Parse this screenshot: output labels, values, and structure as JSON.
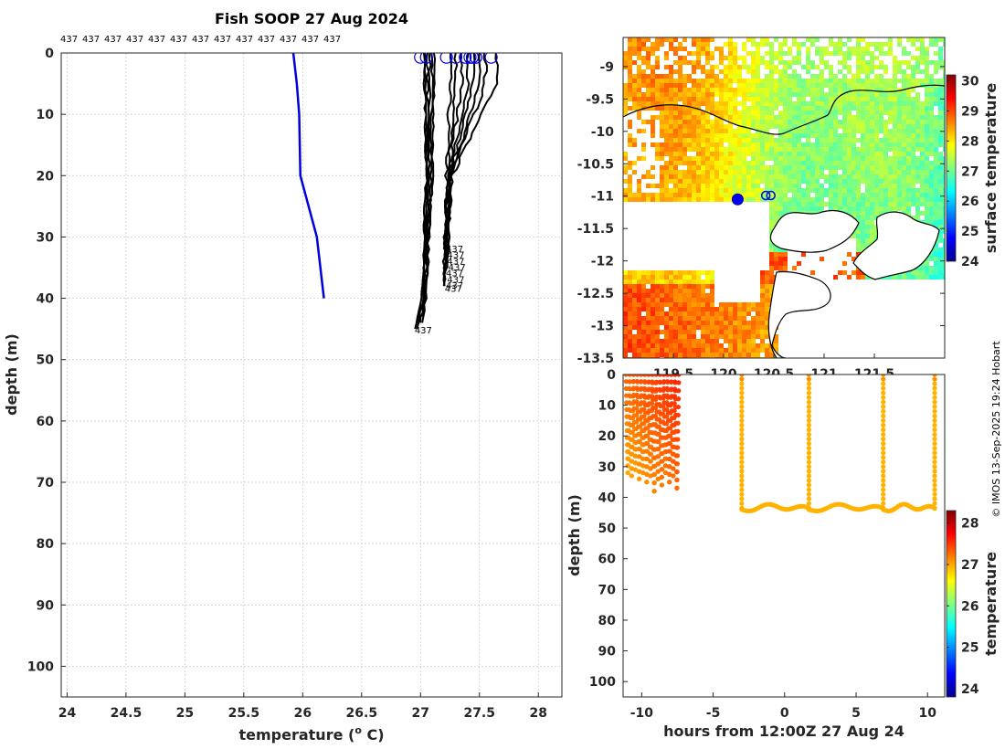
{
  "chart_data": [
    {
      "type": "line",
      "id": "profile",
      "title": "Fish SOOP 27 Aug 2024",
      "xlabel": "temperature (",
      "xlabel_sup": "o",
      "xlabel_unit": " C)",
      "ylabel": "depth (m)",
      "xlim": [
        23.95,
        28.2
      ],
      "ylim": [
        0,
        105
      ],
      "xticks": [
        24,
        24.5,
        25,
        25.5,
        26,
        26.5,
        27,
        27.5,
        28
      ],
      "xtick_labels": [
        "24",
        "24.5",
        "25",
        "25.5",
        "26",
        "26.5",
        "27",
        "27.5",
        "28"
      ],
      "yticks": [
        0,
        10,
        20,
        30,
        40,
        50,
        60,
        70,
        80,
        90,
        100
      ],
      "ytick_labels": [
        "0",
        "10",
        "20",
        "30",
        "40",
        "50",
        "60",
        "70",
        "80",
        "90",
        "100"
      ],
      "top_labels": [
        "437",
        "437",
        "437",
        "437",
        "437",
        "437",
        "437",
        "437",
        "437",
        "437",
        "437",
        "437",
        "437"
      ],
      "series": [
        {
          "name": "reference",
          "color": "#0000dd",
          "points": [
            [
              25.92,
              0
            ],
            [
              25.95,
              5
            ],
            [
              25.97,
              10
            ],
            [
              25.98,
              20
            ],
            [
              26.05,
              25
            ],
            [
              26.12,
              30
            ],
            [
              26.18,
              40
            ]
          ]
        },
        {
          "name": "deep",
          "color": "#000000",
          "tail_label": "437",
          "profiles": [
            {
              "t0": 27.04,
              "t20": 27.05,
              "t40": 27.03,
              "bottom_t": 26.97,
              "bottom_z": 45
            },
            {
              "t0": 27.08,
              "t20": 27.07,
              "t40": 27.04,
              "bottom_t": 26.99,
              "bottom_z": 44.5
            },
            {
              "t0": 27.1,
              "t20": 27.09,
              "t40": 27.05,
              "bottom_t": 27.01,
              "bottom_z": 44
            },
            {
              "t0": 27.06,
              "t20": 27.06,
              "t40": 27.02,
              "bottom_t": 26.96,
              "bottom_z": 44.6
            },
            {
              "t0": 27.12,
              "t20": 27.1,
              "t40": 27.04,
              "bottom_t": 27.0,
              "bottom_z": 43.8
            },
            {
              "t0": 27.03,
              "t20": 27.05,
              "t40": 27.01,
              "bottom_t": 26.95,
              "bottom_z": 45
            }
          ]
        },
        {
          "name": "shallow",
          "color": "#000000",
          "tail_label": "437",
          "profiles": [
            {
              "t0": 27.25,
              "t20": 27.22,
              "bottom_t": 27.2,
              "bottom_z": 32
            },
            {
              "t0": 27.35,
              "t20": 27.24,
              "bottom_t": 27.21,
              "bottom_z": 33
            },
            {
              "t0": 27.45,
              "t20": 27.25,
              "bottom_t": 27.21,
              "bottom_z": 34
            },
            {
              "t0": 27.55,
              "t20": 27.26,
              "bottom_t": 27.22,
              "bottom_z": 35
            },
            {
              "t0": 27.65,
              "t20": 27.27,
              "bottom_t": 27.2,
              "bottom_z": 36
            },
            {
              "t0": 27.4,
              "t20": 27.24,
              "bottom_t": 27.21,
              "bottom_z": 37
            },
            {
              "t0": 27.5,
              "t20": 27.26,
              "bottom_t": 27.2,
              "bottom_z": 38
            },
            {
              "t0": 27.3,
              "t20": 27.23,
              "bottom_t": 27.19,
              "bottom_z": 38.5
            }
          ]
        }
      ],
      "surface_markers": [
        27.0,
        27.05,
        27.22,
        27.3,
        27.38,
        27.42,
        27.44,
        27.47,
        27.6
      ]
    },
    {
      "type": "heatmap",
      "id": "map",
      "xticks": [
        119.5,
        120,
        120.5,
        121,
        121.5
      ],
      "xtick_labels": [
        "119.5",
        "120",
        "120.5",
        "121",
        "121.5"
      ],
      "xlim": [
        119.0,
        122.2
      ],
      "ylim": [
        -13.5,
        -8.55
      ],
      "yticks": [
        -9,
        -9.5,
        -10,
        -10.5,
        -11,
        -11.5,
        -12,
        -12.5,
        -13,
        -13.5
      ],
      "ytick_labels": [
        "-9",
        "-9.5",
        "-10",
        "-10.5",
        "-11",
        "-11.5",
        "-12",
        "-12.5",
        "-13",
        "-13.5"
      ],
      "colorbar_label": "surface temperature",
      "colorbar_range": [
        24,
        30.2
      ],
      "colorbar_ticks": [
        24,
        25,
        26,
        27,
        28,
        29,
        30
      ],
      "colorbar_tick_labels": [
        "24",
        "25",
        "26",
        "27",
        "28",
        "29",
        "30"
      ],
      "markers": [
        [
          120.14,
          -11.05
        ],
        [
          120.42,
          -10.99
        ],
        [
          120.47,
          -10.99
        ]
      ]
    },
    {
      "type": "scatter",
      "id": "timeseries",
      "xlabel": "hours from 12:00Z 27 Aug 24",
      "ylabel": "depth (m)",
      "xlim": [
        -11.3,
        11.2
      ],
      "ylim": [
        0,
        105
      ],
      "xticks": [
        -10,
        -5,
        0,
        5,
        10
      ],
      "xtick_labels": [
        "-10",
        "-5",
        "0",
        "5",
        "10"
      ],
      "yticks": [
        0,
        10,
        20,
        30,
        40,
        50,
        60,
        70,
        80,
        90,
        100
      ],
      "ytick_labels": [
        "0",
        "10",
        "20",
        "30",
        "40",
        "50",
        "60",
        "70",
        "80",
        "90",
        "100"
      ],
      "colorbar_label": "temperature",
      "colorbar_range": [
        23.8,
        28.3
      ],
      "colorbar_ticks": [
        24,
        25,
        26,
        27,
        28
      ],
      "colorbar_tick_labels": [
        "24",
        "25",
        "26",
        "27",
        "28"
      ],
      "zigzag_start": -11.1,
      "zigzag_end": -7.4,
      "zigzag_turn_depths": [
        32,
        33,
        31,
        34,
        32,
        35,
        33,
        38,
        34,
        36,
        32,
        35,
        33,
        37
      ],
      "deep_casts": [
        -3.0,
        1.7,
        6.9,
        10.5
      ],
      "deep_floor": 44
    }
  ],
  "copyright": "© IMOS 13-Sep-2025 19:24 Hobart"
}
